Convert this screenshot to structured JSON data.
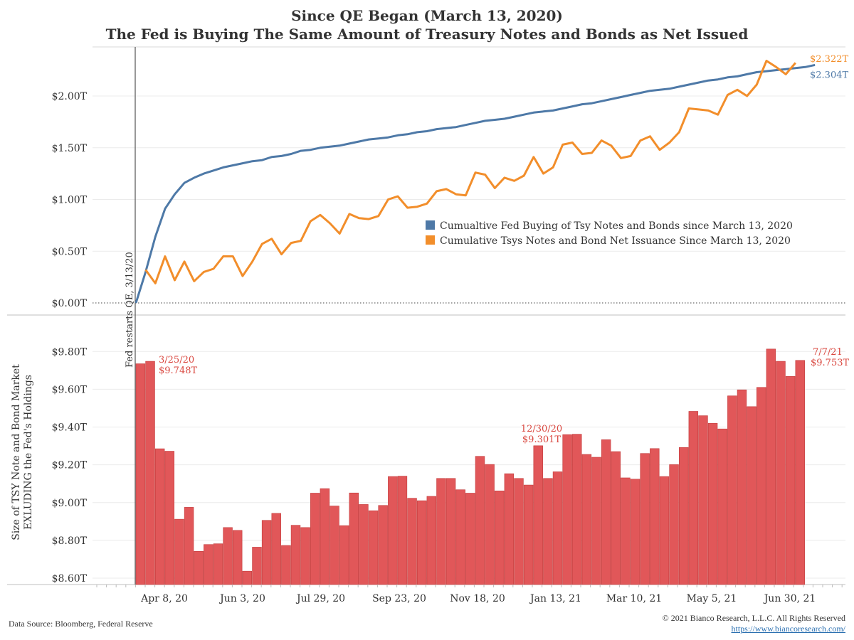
{
  "title_line1": "Since QE Began (March 13, 2020)",
  "title_line2": "The Fed is Buying The Same Amount of Treasury Notes and Bonds as Net Issued",
  "footer": {
    "source": "Data Source: Bloomberg, Federal Reserve",
    "copyright": "© 2021 Bianco Research, L.L.C. All Rights Reserved",
    "url": "https://www.biancoresearch.com/"
  },
  "colors": {
    "fed": "#4e79a7",
    "issuance": "#f28e2b",
    "bars": "#e15759",
    "annot": "#d9473f"
  },
  "chart_data": [
    {
      "type": "line",
      "x_tick_labels": [
        "Apr 8, 20",
        "Jun 3, 20",
        "Jul 29, 20",
        "Sep 23, 20",
        "Nov 18, 20",
        "Jan 13, 21",
        "Mar 10, 21",
        "May 5, 21",
        "Jun 30, 21"
      ],
      "y_tick_labels": [
        "$0.00T",
        "$0.50T",
        "$1.00T",
        "$1.50T",
        "$2.00T"
      ],
      "ylim": [
        0,
        2.4
      ],
      "legend_position": "center-right",
      "event_label": "Fed restarts QE, 3/13/20",
      "series": [
        {
          "name": "Cumualtive Fed Buying of Tsy Notes and Bonds since March 13, 2020",
          "end_label": "$2.304T",
          "values": [
            0.0,
            0.3,
            0.64,
            0.91,
            1.05,
            1.16,
            1.21,
            1.25,
            1.28,
            1.31,
            1.33,
            1.35,
            1.37,
            1.38,
            1.41,
            1.42,
            1.44,
            1.47,
            1.48,
            1.5,
            1.51,
            1.52,
            1.54,
            1.56,
            1.58,
            1.59,
            1.6,
            1.62,
            1.63,
            1.65,
            1.66,
            1.68,
            1.69,
            1.7,
            1.72,
            1.74,
            1.76,
            1.77,
            1.78,
            1.8,
            1.82,
            1.84,
            1.85,
            1.86,
            1.88,
            1.9,
            1.92,
            1.93,
            1.95,
            1.97,
            1.99,
            2.01,
            2.03,
            2.05,
            2.06,
            2.07,
            2.09,
            2.11,
            2.13,
            2.15,
            2.16,
            2.18,
            2.19,
            2.21,
            2.23,
            2.24,
            2.25,
            2.26,
            2.27,
            2.28,
            2.3
          ]
        },
        {
          "name": "Cumulative Tsys Notes and Bond Net Issuance Since March 13, 2020",
          "end_label": "$2.322T",
          "values": [
            null,
            0.32,
            0.19,
            0.45,
            0.22,
            0.4,
            0.21,
            0.3,
            0.33,
            0.45,
            0.45,
            0.26,
            0.4,
            0.57,
            0.62,
            0.47,
            0.58,
            0.6,
            0.79,
            0.85,
            0.77,
            0.67,
            0.86,
            0.82,
            0.81,
            0.84,
            1.0,
            1.03,
            0.92,
            0.93,
            0.96,
            1.08,
            1.1,
            1.05,
            1.04,
            1.26,
            1.24,
            1.11,
            1.21,
            1.18,
            1.23,
            1.41,
            1.25,
            1.31,
            1.53,
            1.55,
            1.44,
            1.45,
            1.57,
            1.52,
            1.4,
            1.42,
            1.57,
            1.61,
            1.48,
            1.55,
            1.65,
            1.88,
            1.87,
            1.86,
            1.82,
            2.01,
            2.06,
            2.0,
            2.11,
            2.34,
            2.28,
            2.21,
            2.32
          ]
        }
      ]
    },
    {
      "type": "bar",
      "ylabel_line1": "Size of TSY Note and Bond Market",
      "ylabel_line2": "EXLUDING the Fed's Holdings",
      "y_tick_labels": [
        "$8.60T",
        "$8.80T",
        "$9.00T",
        "$9.20T",
        "$9.40T",
        "$9.60T",
        "$9.80T"
      ],
      "ylim": [
        8.58,
        9.9
      ],
      "values": [
        9.735,
        9.748,
        9.285,
        9.272,
        8.912,
        8.975,
        8.742,
        8.778,
        8.782,
        8.868,
        8.853,
        8.637,
        8.764,
        8.906,
        8.943,
        8.773,
        8.88,
        8.868,
        9.05,
        9.074,
        8.982,
        8.878,
        9.051,
        8.99,
        8.957,
        8.985,
        9.138,
        9.14,
        9.023,
        9.01,
        9.033,
        9.128,
        9.128,
        9.068,
        9.05,
        9.245,
        9.202,
        9.062,
        9.153,
        9.128,
        9.093,
        9.301,
        9.128,
        9.163,
        9.36,
        9.362,
        9.255,
        9.24,
        9.333,
        9.27,
        9.131,
        9.124,
        9.26,
        9.286,
        9.138,
        9.201,
        9.292,
        9.483,
        9.46,
        9.42,
        9.39,
        9.565,
        9.597,
        9.508,
        9.61,
        9.813,
        9.748,
        9.668,
        9.753
      ],
      "annotations": [
        {
          "date": "3/25/20",
          "value": "$9.748T"
        },
        {
          "date": "12/30/20",
          "value": "$9.301T"
        },
        {
          "date": "7/7/21",
          "value": "$9.753T"
        }
      ]
    }
  ]
}
